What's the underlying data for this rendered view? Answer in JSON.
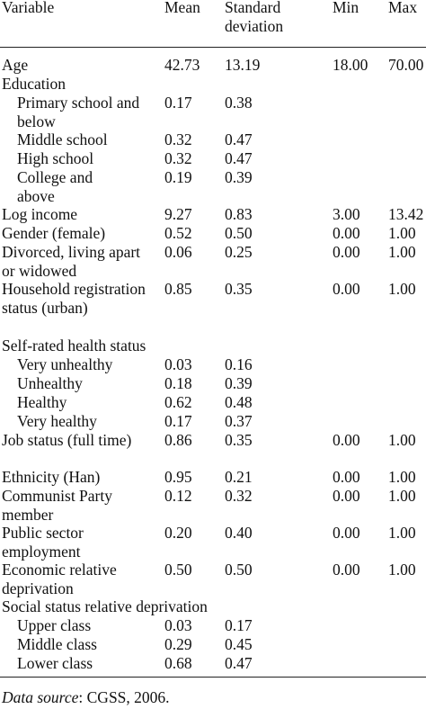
{
  "columns": {
    "variable": "Variable",
    "mean": "Mean",
    "sd": "Standard deviation",
    "min": "Min",
    "max": "Max"
  },
  "rows": [
    {
      "label": "Age",
      "mean": "42.73",
      "sd": "13.19",
      "min": "18.00",
      "max": "70.00"
    },
    {
      "label": "Education",
      "mean": "",
      "sd": "",
      "min": "",
      "max": ""
    },
    {
      "label": "Primary school and below",
      "mean": "0.17",
      "sd": "0.38",
      "min": "",
      "max": ""
    },
    {
      "label": "Middle school",
      "mean": "0.32",
      "sd": "0.47",
      "min": "",
      "max": ""
    },
    {
      "label": "High school",
      "mean": "0.32",
      "sd": "0.47",
      "min": "",
      "max": ""
    },
    {
      "label": "College and above",
      "mean": "0.19",
      "sd": "0.39",
      "min": "",
      "max": ""
    },
    {
      "label": "Log income",
      "mean": "9.27",
      "sd": "0.83",
      "min": "3.00",
      "max": "13.42"
    },
    {
      "label": "Gender (female)",
      "mean": "0.52",
      "sd": "0.50",
      "min": "0.00",
      "max": "1.00"
    },
    {
      "label": "Divorced, living apart or widowed",
      "mean": "0.06",
      "sd": "0.25",
      "min": "0.00",
      "max": "1.00"
    },
    {
      "label": "Household registration status (urban)",
      "mean": "0.85",
      "sd": "0.35",
      "min": "0.00",
      "max": "1.00"
    },
    {
      "label": "Self-rated health status",
      "mean": "",
      "sd": "",
      "min": "",
      "max": ""
    },
    {
      "label": "Very unhealthy",
      "mean": "0.03",
      "sd": "0.16",
      "min": "",
      "max": ""
    },
    {
      "label": "Unhealthy",
      "mean": "0.18",
      "sd": "0.39",
      "min": "",
      "max": ""
    },
    {
      "label": "Healthy",
      "mean": "0.62",
      "sd": "0.48",
      "min": "",
      "max": ""
    },
    {
      "label": "Very healthy",
      "mean": "0.17",
      "sd": "0.37",
      "min": "",
      "max": ""
    },
    {
      "label": "Job status (full time)",
      "mean": "0.86",
      "sd": "0.35",
      "min": "0.00",
      "max": "1.00"
    },
    {
      "label": "Ethnicity (Han)",
      "mean": "0.95",
      "sd": "0.21",
      "min": "0.00",
      "max": "1.00"
    },
    {
      "label": "Communist Party member",
      "mean": "0.12",
      "sd": "0.32",
      "min": "0.00",
      "max": "1.00"
    },
    {
      "label": "Public sector employment",
      "mean": "0.20",
      "sd": "0.40",
      "min": "0.00",
      "max": "1.00"
    },
    {
      "label": "Economic relative deprivation",
      "mean": "0.50",
      "sd": "0.50",
      "min": "0.00",
      "max": "1.00"
    },
    {
      "label": "Social status relative deprivation",
      "mean": "",
      "sd": "",
      "min": "",
      "max": ""
    },
    {
      "label": "Upper class",
      "mean": "0.03",
      "sd": "0.17",
      "min": "",
      "max": ""
    },
    {
      "label": "Middle class",
      "mean": "0.29",
      "sd": "0.45",
      "min": "",
      "max": ""
    },
    {
      "label": "Lower class",
      "mean": "0.68",
      "sd": "0.47",
      "min": "",
      "max": ""
    }
  ],
  "footnote": {
    "label": "Data source",
    "text": ": CGSS, 2006."
  }
}
